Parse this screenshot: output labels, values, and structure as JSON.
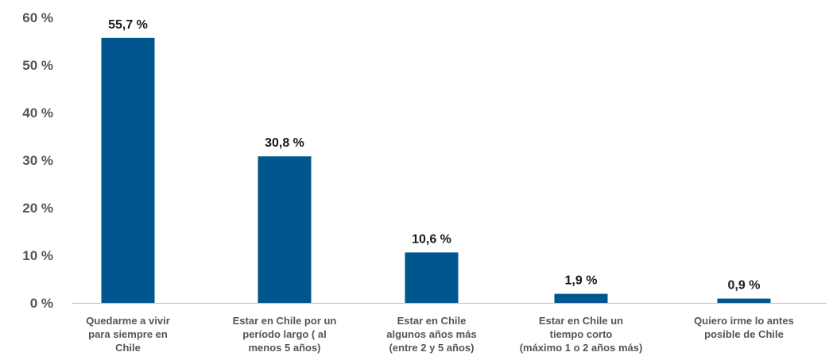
{
  "chart_data": {
    "type": "bar",
    "categories": [
      "Quedarme a vivir\npara siempre en\nChile",
      "Estar en Chile por un\nperíodo largo ( al\nmenos 5 años)",
      "Estar en Chile\nalgunos años más\n(entre 2 y 5 años)",
      "Estar en Chile un\ntiempo corto\n(máximo 1 o 2 años más)",
      "Quiero irme lo antes\nposible de Chile"
    ],
    "values": [
      55.7,
      30.8,
      10.6,
      1.9,
      0.9
    ],
    "data_labels": [
      "55,7 %",
      "30,8 %",
      "10,6 %",
      "1,9 %",
      "0,9 %"
    ],
    "yticks": [
      {
        "value": 0,
        "label": "0 %"
      },
      {
        "value": 10,
        "label": "10 %"
      },
      {
        "value": 20,
        "label": "20 %"
      },
      {
        "value": 30,
        "label": "30 %"
      },
      {
        "value": 40,
        "label": "40 %"
      },
      {
        "value": 50,
        "label": "50 %"
      },
      {
        "value": 60,
        "label": "60 %"
      }
    ],
    "ylim": [
      0,
      60
    ],
    "title": "",
    "xlabel": "",
    "ylabel": "",
    "grid": false,
    "legend": false,
    "colors": {
      "bar": "#00568f",
      "axis": "#bfbfbf",
      "tick_text": "#555555",
      "data_label": "#1a1a1a"
    }
  }
}
